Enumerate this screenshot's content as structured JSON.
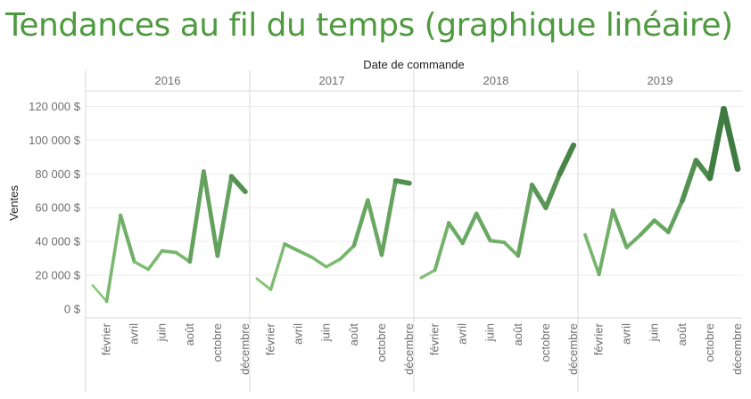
{
  "page": {
    "title": "Tendances au fil du temps (graphique linéaire)"
  },
  "chart_data": {
    "type": "line",
    "title": "Tendances au fil du temps (graphique linéaire)",
    "xlabel": "Date de commande",
    "ylabel": "Ventes",
    "ylim": [
      0,
      125000
    ],
    "yticks": [
      0,
      20000,
      40000,
      60000,
      80000,
      100000,
      120000
    ],
    "ytick_labels": [
      "0 $",
      "20 000 $",
      "40 000 $",
      "60 000 $",
      "80 000 $",
      "100 000 $",
      "120 000 $"
    ],
    "month_tick_labels": [
      "février",
      "avril",
      "juin",
      "août",
      "octobre",
      "décembre"
    ],
    "month_tick_index": [
      1,
      3,
      5,
      7,
      9,
      11
    ],
    "grid": true,
    "colors": {
      "light": "#8fce7f",
      "dark": "#2f6b35",
      "title": "#4e9a3f"
    },
    "panels": [
      {
        "year": "2016",
        "values": [
          14000,
          4500,
          55500,
          28000,
          23500,
          34500,
          33500,
          28000,
          81500,
          31500,
          78500,
          69500
        ]
      },
      {
        "year": "2017",
        "values": [
          18000,
          11500,
          38500,
          34500,
          30500,
          25000,
          29500,
          37500,
          64500,
          32000,
          76000,
          74500
        ]
      },
      {
        "year": "2018",
        "values": [
          18500,
          23000,
          51000,
          39000,
          56500,
          40500,
          39500,
          31500,
          73500,
          60000,
          80000,
          97000
        ]
      },
      {
        "year": "2019",
        "values": [
          44000,
          20500,
          58500,
          36500,
          44000,
          52500,
          45500,
          64000,
          88000,
          77500,
          118500,
          83000
        ]
      }
    ]
  }
}
